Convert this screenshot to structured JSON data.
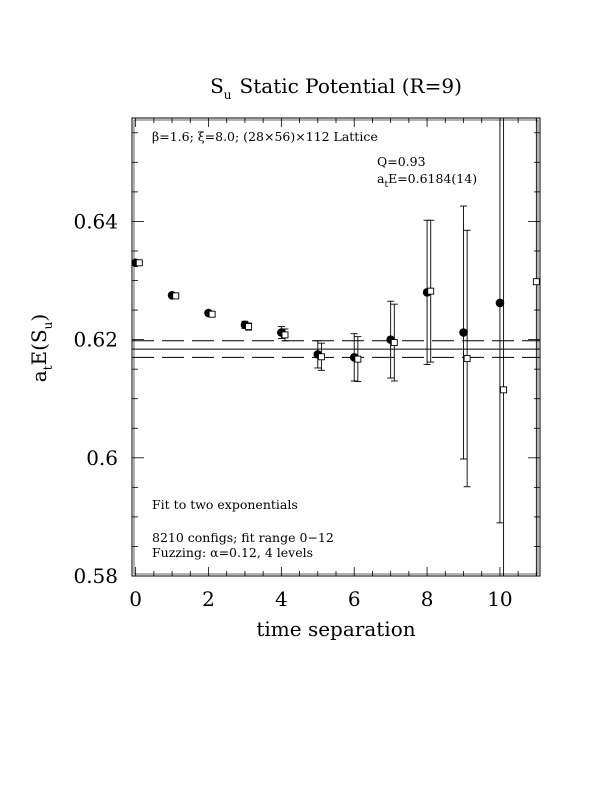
{
  "chart_data": {
    "type": "scatter",
    "title": "Static Potential (R=9)",
    "title_symbol": "S",
    "title_symbol_sub": "u",
    "xlabel": "time separation",
    "ylabel_main": "a",
    "ylabel_sub1": "t",
    "ylabel_mid": "E(S",
    "ylabel_sub2": "u",
    "ylabel_end": ")",
    "xlim": [
      -0.1,
      11.1
    ],
    "ylim": [
      0.58,
      0.6575
    ],
    "x_ticks": [
      0,
      2,
      4,
      6,
      8,
      10
    ],
    "x_tick_labels": [
      "0",
      "2",
      "4",
      "6",
      "8",
      "10"
    ],
    "y_ticks": [
      0.58,
      0.6,
      0.62,
      0.64
    ],
    "y_tick_labels": [
      "0.58",
      "0.6",
      "0.62",
      "0.64"
    ],
    "lattice_text": "β=1.6; ξ=8.0; (28×56)×112 Lattice",
    "q_text": "Q=0.93",
    "fit_text_main": "a",
    "fit_text_sub": "t",
    "fit_text_rest": "E=0.6184(14)",
    "fit_label": "Fit to two exponentials",
    "configs_text": "8210 configs; fit range 0−12",
    "fuzzing_text": "Fuzzing: α=0.12, 4 levels",
    "fit_value": 0.6184,
    "fit_band": [
      0.617,
      0.6198
    ],
    "series": [
      {
        "marker": "filled-circle",
        "x": [
          0,
          1,
          2,
          3,
          4,
          5,
          6,
          7,
          8,
          9,
          10
        ],
        "y": [
          0.633,
          0.6275,
          0.6245,
          0.6225,
          0.6212,
          0.6175,
          0.617,
          0.62,
          0.628,
          0.6212,
          0.6262
        ],
        "err": [
          0.0002,
          0.0003,
          0.0004,
          0.0006,
          0.001,
          0.0023,
          0.004,
          0.0065,
          0.0122,
          0.0214,
          0.0372
        ]
      },
      {
        "marker": "open-square",
        "x": [
          0.1,
          1.1,
          2.1,
          3.1,
          4.1,
          5.1,
          6.1,
          7.1,
          8.1,
          9.1,
          10.1,
          11.0
        ],
        "y": [
          0.633,
          0.6274,
          0.6243,
          0.6222,
          0.6208,
          0.6171,
          0.6167,
          0.6195,
          0.6282,
          0.6168,
          0.6115,
          0.6298
        ],
        "err": [
          0.0002,
          0.0003,
          0.0004,
          0.0006,
          0.001,
          0.0023,
          0.0038,
          0.0065,
          0.012,
          0.0217,
          0.05,
          0.05
        ]
      }
    ]
  }
}
